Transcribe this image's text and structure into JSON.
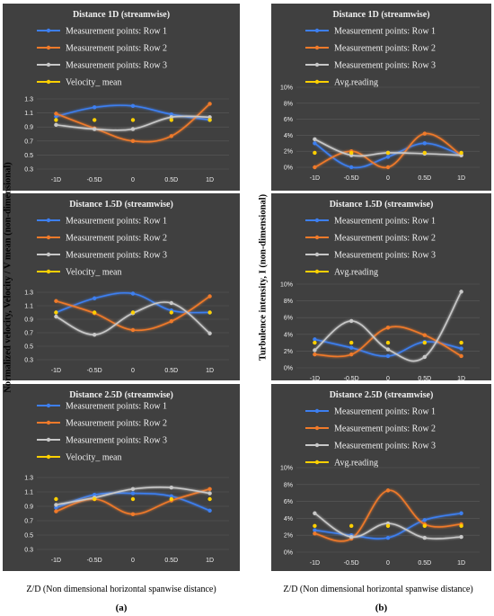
{
  "figure": {
    "left_ylabel": "Normalized velocity, Velocity / V mean (non-dimensional)",
    "right_ylabel": "Turbulence intensity, I (non-dimensional)",
    "left_xlabel": "Z/D (Non dimensional horizontal spanwise distance)",
    "right_xlabel": "Z/D (Non dimensional horizontal spanwise distance)",
    "tag_a": "(a)",
    "tag_b": "(b)"
  },
  "colors": {
    "panel_bg": "#404040",
    "row1": "#3d7ff0",
    "row2": "#f07a2a",
    "row3": "#c8c8c8",
    "mean": "#ffd000",
    "text": "#f0f0f0",
    "grid": "#5a5a5a"
  },
  "chart_data": [
    {
      "type": "line",
      "title": "Distance 1D (streamwise)",
      "categories": [
        "-1D",
        "-0.5D",
        "0",
        "0.5D",
        "1D"
      ],
      "ylim": [
        0.3,
        1.3
      ],
      "yticks": [
        "0.3",
        "0.5",
        "0.7",
        "0.9",
        "1.1",
        "1.3"
      ],
      "series": [
        {
          "name": "Measurement points: Row 1",
          "values": [
            1.05,
            1.18,
            1.2,
            1.08,
            1.0
          ]
        },
        {
          "name": "Measurement points: Row 2",
          "values": [
            1.09,
            0.88,
            0.7,
            0.77,
            1.23
          ]
        },
        {
          "name": "Measurement points: Row 3",
          "values": [
            0.93,
            0.87,
            0.87,
            1.04,
            1.04
          ]
        },
        {
          "name": "Velocity_ mean",
          "values": [
            1.0,
            1.0,
            1.0,
            1.0,
            1.0
          ]
        }
      ]
    },
    {
      "type": "line",
      "title": "Distance 1.5D (streamwise)",
      "categories": [
        "-1D",
        "-0.5D",
        "0",
        "0.5D",
        "1D"
      ],
      "ylim": [
        0.3,
        1.3
      ],
      "yticks": [
        "0.3",
        "0.5",
        "0.7",
        "0.9",
        "1.1",
        "1.3"
      ],
      "series": [
        {
          "name": "Measurement points: Row 1",
          "values": [
            1.0,
            1.21,
            1.28,
            1.03,
            1.0
          ]
        },
        {
          "name": "Measurement points: Row 2",
          "values": [
            1.17,
            0.99,
            0.74,
            0.87,
            1.24
          ]
        },
        {
          "name": "Measurement points: Row 3",
          "values": [
            0.94,
            0.67,
            0.99,
            1.14,
            0.69
          ]
        },
        {
          "name": "Velocity_ mean",
          "values": [
            1.0,
            1.0,
            1.0,
            1.0,
            1.0
          ]
        }
      ]
    },
    {
      "type": "line",
      "title": "Distance 2.5D (streamwise)",
      "categories": [
        "-1D",
        "-0.5D",
        "0",
        "0.5D",
        "1D"
      ],
      "ylim": [
        0.3,
        1.3
      ],
      "yticks": [
        "0.3",
        "0.5",
        "0.7",
        "0.9",
        "1.1",
        "1.3"
      ],
      "series": [
        {
          "name": "Measurement points: Row 1",
          "values": [
            0.88,
            1.06,
            1.08,
            1.04,
            0.84
          ]
        },
        {
          "name": "Measurement points: Row 2",
          "values": [
            0.83,
            1.0,
            0.79,
            0.98,
            1.14
          ]
        },
        {
          "name": "Measurement points: Row 3",
          "values": [
            0.92,
            1.02,
            1.14,
            1.16,
            1.08
          ]
        },
        {
          "name": "Velocity_ mean",
          "values": [
            1.0,
            1.0,
            1.0,
            1.0,
            1.0
          ]
        }
      ]
    },
    {
      "type": "line",
      "title": "Distance 1D (streamwise)",
      "categories": [
        "-1D",
        "-0.5D",
        "0",
        "0.5D",
        "1D"
      ],
      "ylim": [
        0,
        10
      ],
      "yticks": [
        "0%",
        "2%",
        "4%",
        "6%",
        "8%",
        "10%"
      ],
      "series": [
        {
          "name": "Measurement points: Row 1",
          "values": [
            3.0,
            0.0,
            1.3,
            3.0,
            1.5
          ]
        },
        {
          "name": "Measurement points: Row 2",
          "values": [
            0.0,
            2.0,
            0.0,
            4.2,
            1.5
          ]
        },
        {
          "name": "Measurement points: Row 3",
          "values": [
            3.5,
            1.5,
            1.8,
            1.7,
            1.5
          ]
        },
        {
          "name": "Avg.reading",
          "values": [
            1.8,
            1.8,
            1.8,
            1.8,
            1.8
          ]
        }
      ]
    },
    {
      "type": "line",
      "title": "Distance 1.5D (streamwise)",
      "categories": [
        "-1D",
        "-0.5D",
        "0",
        "0.5D",
        "1D"
      ],
      "ylim": [
        0,
        10
      ],
      "yticks": [
        "0%",
        "2%",
        "4%",
        "6%",
        "8%",
        "10%"
      ],
      "series": [
        {
          "name": "Measurement points: Row 1",
          "values": [
            3.4,
            2.4,
            1.4,
            3.1,
            2.3
          ]
        },
        {
          "name": "Measurement points: Row 2",
          "values": [
            1.6,
            1.6,
            4.8,
            3.9,
            1.4
          ]
        },
        {
          "name": "Measurement points: Row 3",
          "values": [
            2.1,
            5.6,
            2.2,
            1.3,
            9.1
          ]
        },
        {
          "name": "Avg.reading",
          "values": [
            3.0,
            3.0,
            3.0,
            3.0,
            3.0
          ]
        }
      ]
    },
    {
      "type": "line",
      "title": "Distance 2.5D (streamwise)",
      "categories": [
        "-1D",
        "-0.5D",
        "0",
        "0.5D",
        "1D"
      ],
      "ylim": [
        0,
        10
      ],
      "yticks": [
        "0%",
        "2%",
        "4%",
        "6%",
        "8%",
        "10%"
      ],
      "series": [
        {
          "name": "Measurement points: Row 1",
          "values": [
            2.6,
            2.0,
            1.7,
            3.8,
            4.6
          ]
        },
        {
          "name": "Measurement points: Row 2",
          "values": [
            2.2,
            1.6,
            7.3,
            3.3,
            3.3
          ]
        },
        {
          "name": "Measurement points: Row 3",
          "values": [
            4.6,
            1.8,
            3.4,
            1.7,
            1.8
          ]
        },
        {
          "name": "Avg.reading",
          "values": [
            3.1,
            3.1,
            3.1,
            3.1,
            3.1
          ]
        }
      ]
    }
  ]
}
